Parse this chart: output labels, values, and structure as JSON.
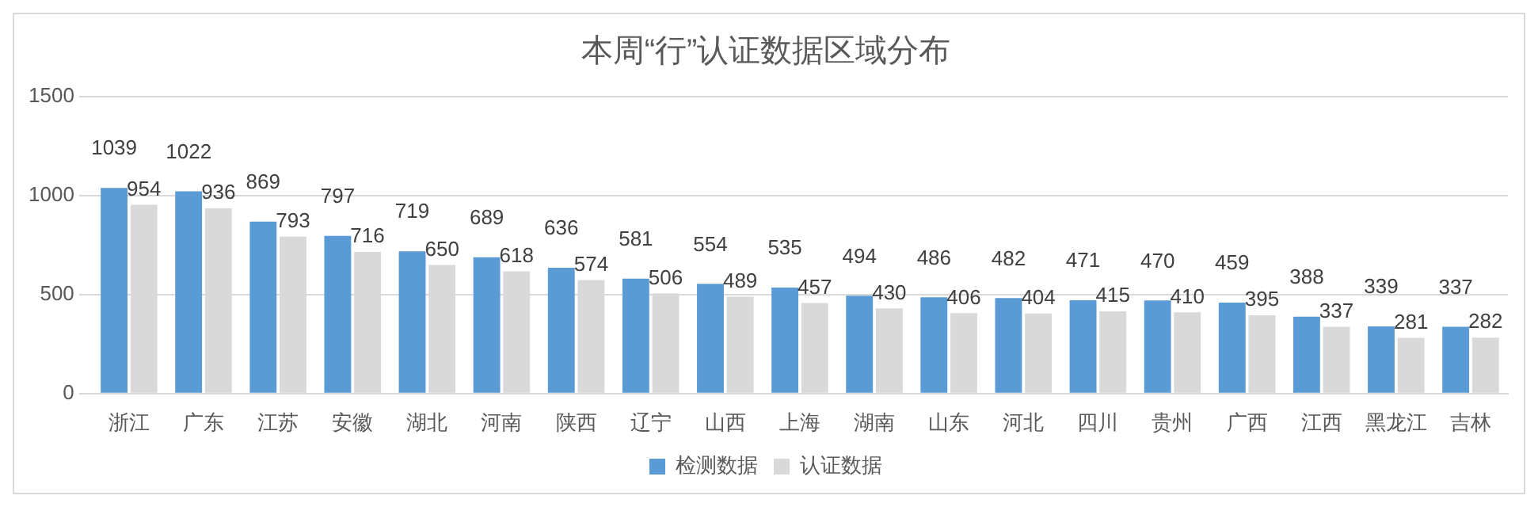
{
  "chart_data": {
    "type": "bar",
    "title": "本周“行”认证数据区域分布",
    "categories": [
      "浙江",
      "广东",
      "江苏",
      "安徽",
      "湖北",
      "河南",
      "陕西",
      "辽宁",
      "山西",
      "上海",
      "湖南",
      "山东",
      "河北",
      "四川",
      "贵州",
      "广西",
      "江西",
      "黑龙江",
      "吉林"
    ],
    "series": [
      {
        "name": "检测数据",
        "color": "#5b9bd5",
        "values": [
          1039,
          1022,
          869,
          797,
          719,
          689,
          636,
          581,
          554,
          535,
          494,
          486,
          482,
          471,
          470,
          459,
          388,
          339,
          337
        ]
      },
      {
        "name": "认证数据",
        "color": "#d9d9d9",
        "values": [
          954,
          936,
          793,
          716,
          650,
          618,
          574,
          506,
          489,
          457,
          430,
          406,
          404,
          415,
          410,
          395,
          337,
          281,
          282
        ]
      }
    ],
    "ylim": [
      0,
      1500
    ],
    "yticks": [
      0,
      500,
      1000,
      1500
    ],
    "grid": "y",
    "legend": "bottom",
    "data_labels": true
  }
}
